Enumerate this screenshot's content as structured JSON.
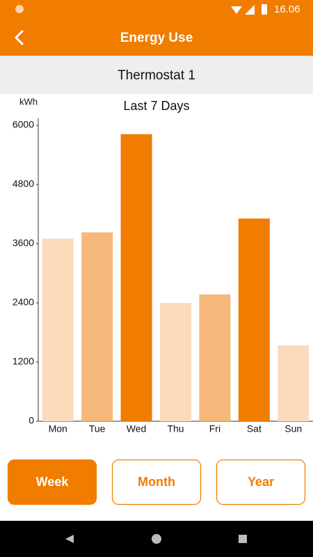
{
  "status_bar": {
    "time": "16.06"
  },
  "header": {
    "title": "Energy Use"
  },
  "device": {
    "name": "Thermostat 1"
  },
  "chart_data": {
    "type": "bar",
    "title": "Last 7 Days",
    "y_label": "kWh",
    "categories": [
      "Mon",
      "Tue",
      "Wed",
      "Thu",
      "Fri",
      "Sat",
      "Sun"
    ],
    "values": [
      3700,
      3830,
      5820,
      2400,
      2570,
      4110,
      1540
    ],
    "colors": [
      "#fadcbc",
      "#f5b87a",
      "#f07c00",
      "#fadcbc",
      "#f5b87a",
      "#f07c00",
      "#fadcbc"
    ],
    "ylim": [
      0,
      6000
    ],
    "yticks": [
      0,
      1200,
      2400,
      3600,
      4800,
      6000
    ],
    "grid": false
  },
  "period_buttons": [
    {
      "label": "Week",
      "active": true
    },
    {
      "label": "Month",
      "active": false
    },
    {
      "label": "Year",
      "active": false
    }
  ]
}
